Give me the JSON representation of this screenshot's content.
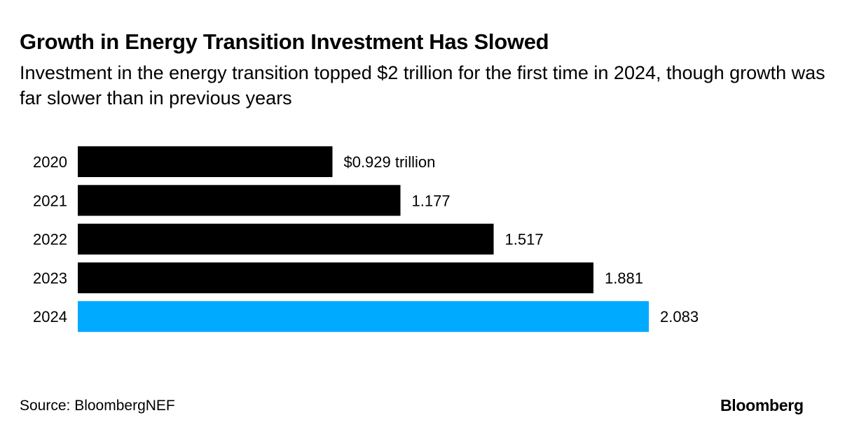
{
  "chart_data": {
    "type": "bar",
    "orientation": "horizontal",
    "title": "Growth in Energy Transition Investment Has Slowed",
    "subtitle": "Investment in the energy transition topped $2 trillion for the first time in 2024, though growth was far slower than in previous years",
    "categories": [
      "2020",
      "2021",
      "2022",
      "2023",
      "2024"
    ],
    "values": [
      0.929,
      1.177,
      1.517,
      1.881,
      2.083
    ],
    "data_labels": [
      "$0.929 trillion",
      "1.177",
      "1.517",
      "1.881",
      "2.083"
    ],
    "unit": "trillion USD",
    "xlim": [
      0,
      2.083
    ],
    "grid": false,
    "colors": [
      "#000000",
      "#000000",
      "#000000",
      "#000000",
      "#00aaff"
    ]
  },
  "source": "Source: BloombergNEF",
  "logo": "Bloomberg"
}
